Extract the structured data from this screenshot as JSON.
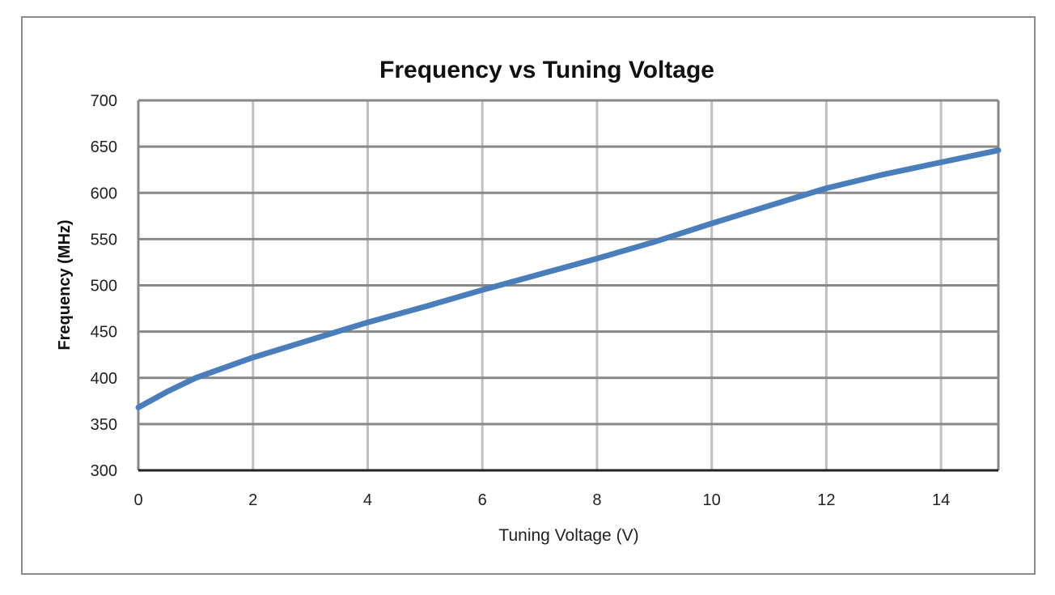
{
  "chart_data": {
    "type": "line",
    "title": "Frequency vs Tuning Voltage",
    "xlabel": "Tuning Voltage (V)",
    "ylabel": "Frequency (MHz)",
    "xlim": [
      0,
      15
    ],
    "ylim": [
      300,
      700
    ],
    "xticks": [
      0,
      2,
      4,
      6,
      8,
      10,
      12,
      14
    ],
    "yticks": [
      300,
      350,
      400,
      450,
      500,
      550,
      600,
      650,
      700
    ],
    "grid": true,
    "legend": "none",
    "line_color": "#4a7ebb",
    "series": [
      {
        "x": [
          0,
          0.5,
          1,
          1.5,
          2,
          3,
          4,
          5,
          6,
          7,
          8,
          9,
          10,
          11,
          12,
          13,
          14,
          15
        ],
        "y": [
          368,
          385,
          400,
          411,
          422,
          441,
          460,
          477,
          495,
          512,
          529,
          547,
          567,
          586,
          605,
          620,
          633,
          646
        ]
      }
    ]
  }
}
